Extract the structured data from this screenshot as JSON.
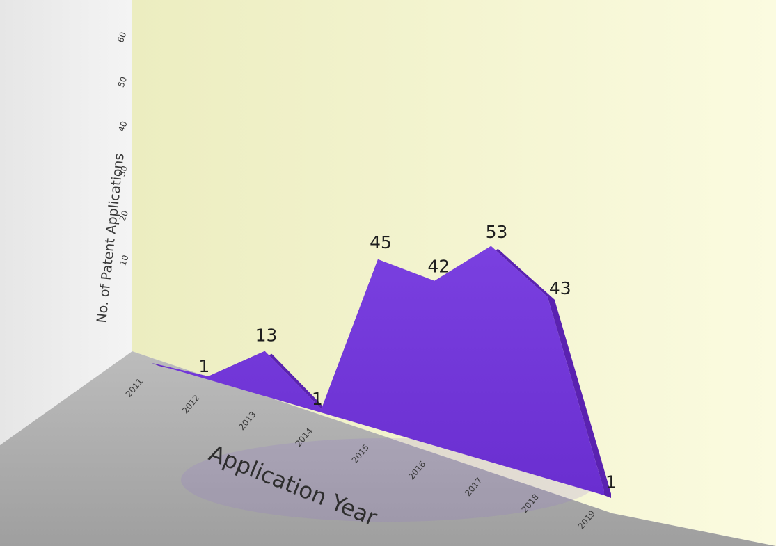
{
  "chart_data": {
    "type": "area",
    "title": "",
    "xlabel": "Application Year",
    "ylabel": "No. of Patent Applications",
    "ylim": [
      0,
      60
    ],
    "y_ticks": [
      10,
      20,
      30,
      40,
      50,
      60
    ],
    "categories": [
      "2011",
      "2012",
      "2013",
      "2014",
      "2015",
      "2016",
      "2017",
      "2018",
      "2019"
    ],
    "values": [
      0,
      1,
      13,
      1,
      45,
      42,
      53,
      43,
      1
    ],
    "data_labels": [
      "",
      "1",
      "13",
      "1",
      "45",
      "42",
      "53",
      "43",
      "1"
    ],
    "colors": {
      "area": "#7a3ddc",
      "area_side": "#5a22b0",
      "back_wall": "#f3f3c6",
      "side_wall": "#ececec",
      "floor": "#a9a9a9"
    }
  }
}
